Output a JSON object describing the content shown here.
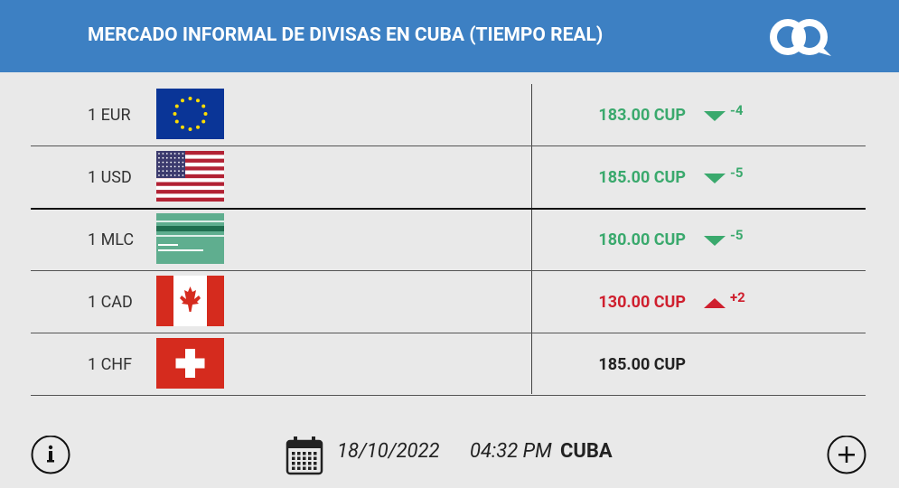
{
  "header": {
    "title": "MERCADO INFORMAL DE DIVISAS EN CUBA (TIEMPO REAL)"
  },
  "table": {
    "rows": [
      {
        "currency": "1 EUR",
        "rate": "183.00 CUP",
        "change": "-4",
        "trend": "down"
      },
      {
        "currency": "1 USD",
        "rate": "185.00 CUP",
        "change": "-5",
        "trend": "down"
      },
      {
        "currency": "1 MLC",
        "rate": "180.00 CUP",
        "change": "-5",
        "trend": "down"
      },
      {
        "currency": "1 CAD",
        "rate": "130.00 CUP",
        "change": "+2",
        "trend": "up"
      },
      {
        "currency": "1 CHF",
        "rate": "185.00 CUP"
      }
    ]
  },
  "footer": {
    "date": "18/10/2022",
    "time": "04:32 PM",
    "location": "CUBA"
  }
}
